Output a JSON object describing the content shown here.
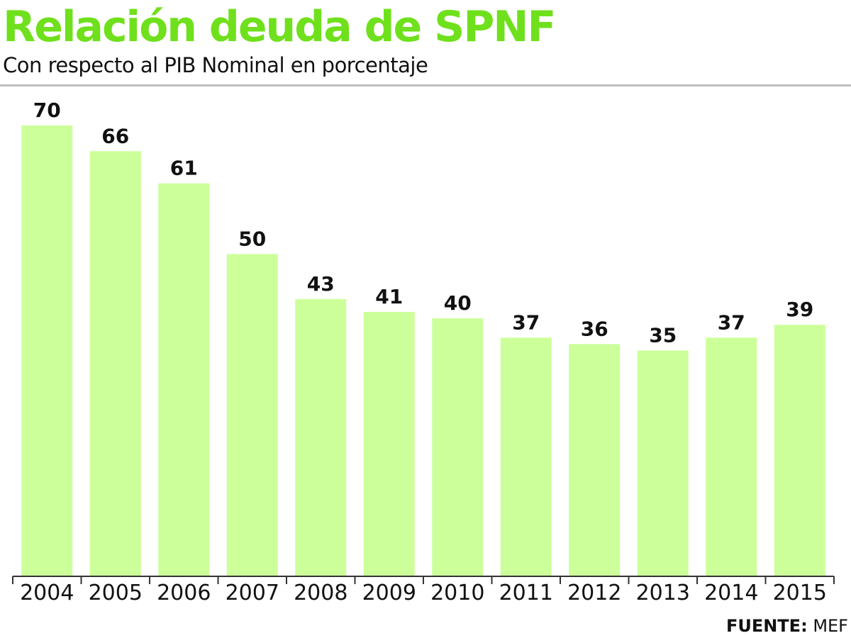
{
  "colors": {
    "title": "#6fe01c",
    "bar": "#ccff99",
    "text": "#111111",
    "axis": "#333333",
    "rule": "#bdbdbd"
  },
  "chart_data": {
    "type": "bar",
    "title": "Relación deuda de SPNF",
    "subtitle": "Con respecto al PIB Nominal en porcentaje",
    "categories": [
      "2004",
      "2005",
      "2006",
      "2007",
      "2008",
      "2009",
      "2010",
      "2011",
      "2012",
      "2013",
      "2014",
      "2015"
    ],
    "values": [
      70,
      66,
      61,
      50,
      43,
      41,
      40,
      37,
      36,
      35,
      37,
      39
    ],
    "ylim": [
      0,
      70
    ],
    "grid": false,
    "legend": "none",
    "source_label": "FUENTE:",
    "source_value": "MEF"
  }
}
